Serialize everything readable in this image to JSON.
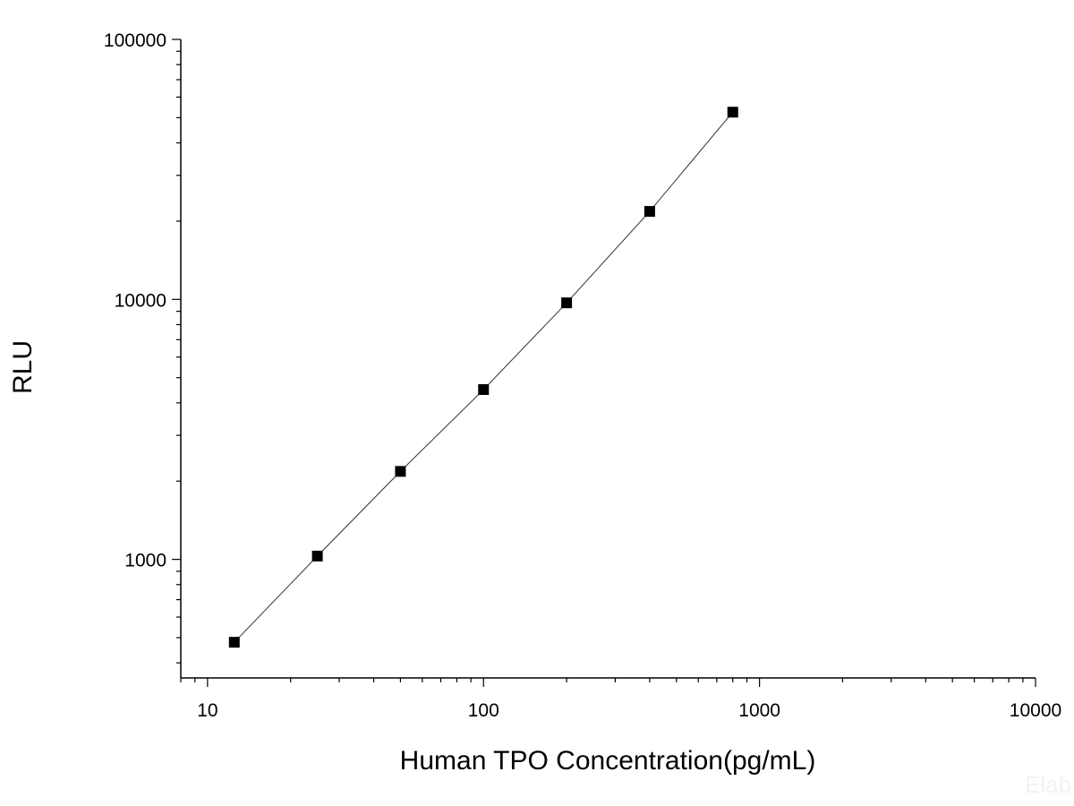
{
  "chart_data": {
    "type": "scatter",
    "title": "",
    "xlabel": "Human TPO Concentration(pg/mL)",
    "ylabel": "RLU",
    "x_scale": "log",
    "y_scale": "log",
    "xlim": [
      8,
      10000
    ],
    "ylim": [
      350,
      100000
    ],
    "grid": false,
    "legend": "none",
    "x_tick_labels": [
      "10",
      "100",
      "1000",
      "10000"
    ],
    "y_tick_labels": [
      "1000",
      "10000",
      "100000"
    ],
    "series": [
      {
        "x": [
          12.5,
          25,
          50,
          100,
          200,
          400,
          800
        ],
        "y": [
          480,
          1030,
          2180,
          4500,
          9700,
          21800,
          52500
        ],
        "marker": "square",
        "line": true
      }
    ]
  },
  "watermark": "Elab"
}
